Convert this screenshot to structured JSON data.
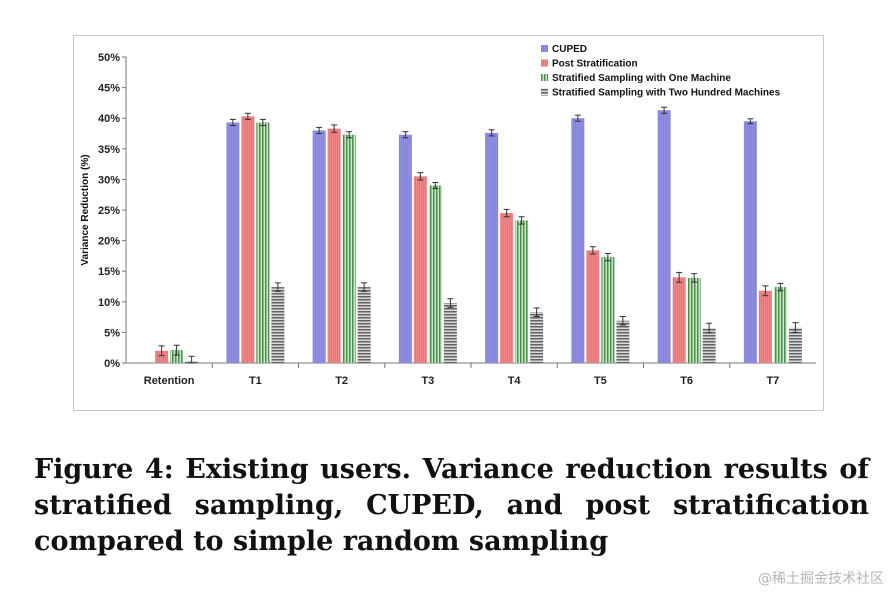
{
  "chart_data": {
    "type": "bar",
    "ylabel": "Variance Reduction (%)",
    "xlabel": "",
    "ylim": [
      0,
      50
    ],
    "yticks": [
      "0%",
      "5%",
      "10%",
      "15%",
      "20%",
      "25%",
      "30%",
      "35%",
      "40%",
      "45%",
      "50%"
    ],
    "categories": [
      "Retention",
      "T1",
      "T2",
      "T3",
      "T4",
      "T5",
      "T6",
      "T7"
    ],
    "series": [
      {
        "name": "CUPED",
        "color": "#8f8fe6",
        "pattern": "vertical-hatch",
        "values": [
          0,
          39.3,
          38.0,
          37.3,
          37.6,
          40.0,
          41.3,
          39.5
        ],
        "errors": [
          0,
          0.5,
          0.5,
          0.5,
          0.5,
          0.5,
          0.5,
          0.4
        ]
      },
      {
        "name": "Post Stratification",
        "color": "#ef8585",
        "pattern": "vertical-hatch",
        "values": [
          2.0,
          40.3,
          38.3,
          30.5,
          24.5,
          18.4,
          14.0,
          11.8
        ],
        "errors": [
          0.8,
          0.5,
          0.6,
          0.6,
          0.6,
          0.6,
          0.8,
          0.8
        ]
      },
      {
        "name": "Stratified Sampling with One Machine",
        "color": "#6cc46c",
        "pattern": "vertical-stripes",
        "values": [
          2.1,
          39.3,
          37.3,
          29.0,
          23.3,
          17.3,
          13.9,
          12.4
        ],
        "errors": [
          0.8,
          0.5,
          0.5,
          0.5,
          0.6,
          0.6,
          0.7,
          0.6
        ]
      },
      {
        "name": "Stratified Sampling with Two Hundred Machines",
        "color": "#8a8a8a",
        "pattern": "horizontal-stripes",
        "values": [
          0.3,
          12.4,
          12.4,
          9.8,
          8.3,
          6.9,
          5.7,
          5.8
        ],
        "errors": [
          0.8,
          0.7,
          0.7,
          0.7,
          0.7,
          0.7,
          0.8,
          0.8
        ]
      }
    ],
    "legend_position": "top-right",
    "grid": false
  },
  "caption": "Figure 4: Existing users. Variance reduction results of stratified sampling, CUPED, and post stratification compared to simple random sampling",
  "watermark": "@稀土掘金技术社区"
}
